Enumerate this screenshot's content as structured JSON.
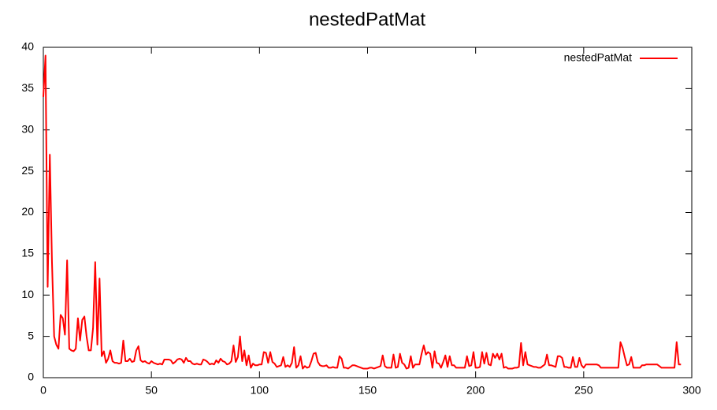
{
  "chart_data": {
    "type": "line",
    "title": "nestedPatMat",
    "xlim": [
      0,
      300
    ],
    "xticks": [
      0,
      50,
      100,
      150,
      200,
      250,
      300
    ],
    "ylim": [
      0,
      40
    ],
    "yticks": [
      0,
      5,
      10,
      15,
      20,
      25,
      30,
      35,
      40
    ],
    "legend": "top-right",
    "series": [
      {
        "name": "nestedPatMat",
        "color": "#ff0000",
        "x": [
          0,
          1,
          2,
          3,
          4,
          5,
          6,
          7,
          8,
          9,
          10,
          11,
          12,
          13,
          14,
          15,
          16,
          17,
          18,
          19,
          20,
          21,
          22,
          23,
          24,
          25,
          26,
          27,
          28,
          29,
          30,
          31,
          32,
          33,
          34,
          35,
          36,
          37,
          38,
          39,
          40,
          41,
          42,
          43,
          44,
          45,
          46,
          47,
          48,
          49,
          50,
          51,
          52,
          53,
          54,
          55,
          56,
          57,
          58,
          59,
          60,
          61,
          62,
          63,
          64,
          65,
          66,
          67,
          68,
          69,
          70,
          71,
          72,
          73,
          74,
          75,
          76,
          77,
          78,
          79,
          80,
          81,
          82,
          83,
          84,
          85,
          86,
          87,
          88,
          89,
          90,
          91,
          92,
          93,
          94,
          95,
          96,
          97,
          98,
          99,
          100,
          101,
          102,
          103,
          104,
          105,
          106,
          107,
          108,
          109,
          110,
          111,
          112,
          113,
          114,
          115,
          116,
          117,
          118,
          119,
          120,
          121,
          122,
          123,
          124,
          125,
          126,
          127,
          128,
          129,
          130,
          131,
          132,
          133,
          134,
          135,
          136,
          137,
          138,
          139,
          140,
          141,
          142,
          143,
          144,
          145,
          146,
          147,
          148,
          149,
          150,
          151,
          152,
          153,
          154,
          155,
          156,
          157,
          158,
          159,
          160,
          161,
          162,
          163,
          164,
          165,
          166,
          167,
          168,
          169,
          170,
          171,
          172,
          173,
          174,
          175,
          176,
          177,
          178,
          179,
          180,
          181,
          182,
          183,
          184,
          185,
          186,
          187,
          188,
          189,
          190,
          191,
          192,
          193,
          194,
          195,
          196,
          197,
          198,
          199,
          200,
          201,
          202,
          203,
          204,
          205,
          206,
          207,
          208,
          209,
          210,
          211,
          212,
          213,
          214,
          215,
          216,
          217,
          218,
          219,
          220,
          221,
          222,
          223,
          224,
          225,
          226,
          227,
          228,
          229,
          230,
          231,
          232,
          233,
          234,
          235,
          236,
          237,
          238,
          239,
          240,
          241,
          242,
          243,
          244,
          245,
          246,
          247,
          248,
          249,
          250,
          251,
          252,
          253,
          254,
          255,
          256,
          257,
          258,
          259,
          260,
          261,
          262,
          263,
          264,
          265,
          266,
          267,
          268,
          269,
          270,
          271,
          272,
          273,
          274,
          275,
          276,
          277,
          278,
          279,
          280,
          281,
          282,
          283,
          284,
          285,
          286,
          287,
          288,
          289,
          290,
          291,
          292,
          293,
          294,
          295
        ],
        "values": [
          34,
          39,
          11,
          27,
          14,
          5,
          4,
          3.5,
          7.6,
          7.2,
          5.2,
          14.2,
          3.5,
          3.3,
          3.2,
          3.5,
          7.2,
          4.5,
          7.0,
          7.4,
          5,
          3.3,
          3.3,
          6,
          14,
          4,
          12,
          2.6,
          3.2,
          1.8,
          2.3,
          3.3,
          2,
          1.8,
          1.8,
          1.7,
          1.8,
          4.5,
          2,
          2,
          2.3,
          1.9,
          2.0,
          3.3,
          3.8,
          2.1,
          1.9,
          2.0,
          1.8,
          1.7,
          2.0,
          1.8,
          1.7,
          1.6,
          1.7,
          1.6,
          2.2,
          2.2,
          2.2,
          2.1,
          1.7,
          1.9,
          2.2,
          2.3,
          2.2,
          1.8,
          2.4,
          2.0,
          2.0,
          1.7,
          1.6,
          1.7,
          1.6,
          1.6,
          2.2,
          2.1,
          1.9,
          1.6,
          1.7,
          1.6,
          2.1,
          1.8,
          2.3,
          2.0,
          1.9,
          1.6,
          1.7,
          2.0,
          3.9,
          1.9,
          2.5,
          5.0,
          2.0,
          3.3,
          1.5,
          2.7,
          1.2,
          1.7,
          1.5,
          1.5,
          1.6,
          1.6,
          3.1,
          3.0,
          1.8,
          3.1,
          1.9,
          1.7,
          1.3,
          1.4,
          1.5,
          2.5,
          1.3,
          1.5,
          1.3,
          1.8,
          3.7,
          1.2,
          1.5,
          2.6,
          1.1,
          1.4,
          1.2,
          1.3,
          2.0,
          2.9,
          3.0,
          1.9,
          1.5,
          1.4,
          1.4,
          1.5,
          1.2,
          1.2,
          1.3,
          1.2,
          1.2,
          2.6,
          2.3,
          1.2,
          1.2,
          1.1,
          1.3,
          1.5,
          1.5,
          1.4,
          1.3,
          1.2,
          1.1,
          1.1,
          1.1,
          1.2,
          1.2,
          1.1,
          1.2,
          1.3,
          1.4,
          2.7,
          1.4,
          1.2,
          1.2,
          1.2,
          2.8,
          1.2,
          1.3,
          2.9,
          1.8,
          1.6,
          1.1,
          1.2,
          2.6,
          1.2,
          1.6,
          1.6,
          1.6,
          2.9,
          3.9,
          2.8,
          3.1,
          2.9,
          1.2,
          3.2,
          1.8,
          1.7,
          1.2,
          1.9,
          2.7,
          1.3,
          2.6,
          1.5,
          1.5,
          1.2,
          1.2,
          1.2,
          1.2,
          1.2,
          2.6,
          1.4,
          1.5,
          3.1,
          1.2,
          1.2,
          1.3,
          3.1,
          1.7,
          3.0,
          1.6,
          1.5,
          2.9,
          2.4,
          2.9,
          2.2,
          2.9,
          1.2,
          1.3,
          1.1,
          1.1,
          1.1,
          1.2,
          1.2,
          1.3,
          4.2,
          1.5,
          3.1,
          1.6,
          1.5,
          1.4,
          1.3,
          1.3,
          1.2,
          1.2,
          1.4,
          1.6,
          2.8,
          1.5,
          1.5,
          1.4,
          1.3,
          2.6,
          2.6,
          2.4,
          1.3,
          1.3,
          1.2,
          1.2,
          2.5,
          1.3,
          1.3,
          2.4,
          1.5,
          1.2,
          1.6,
          1.6,
          1.6,
          1.6,
          1.6,
          1.6,
          1.5,
          1.2,
          1.2,
          1.2,
          1.2,
          1.2,
          1.2,
          1.2,
          1.2,
          1.2,
          4.3,
          3.6,
          2.5,
          1.5,
          1.6,
          2.5,
          1.2,
          1.2,
          1.2,
          1.2,
          1.5,
          1.5,
          1.6,
          1.6,
          1.6,
          1.6,
          1.6,
          1.6,
          1.4,
          1.2,
          1.2,
          1.2,
          1.2,
          1.2,
          1.2,
          1.2,
          4.3,
          1.6,
          1.6
        ]
      }
    ]
  }
}
